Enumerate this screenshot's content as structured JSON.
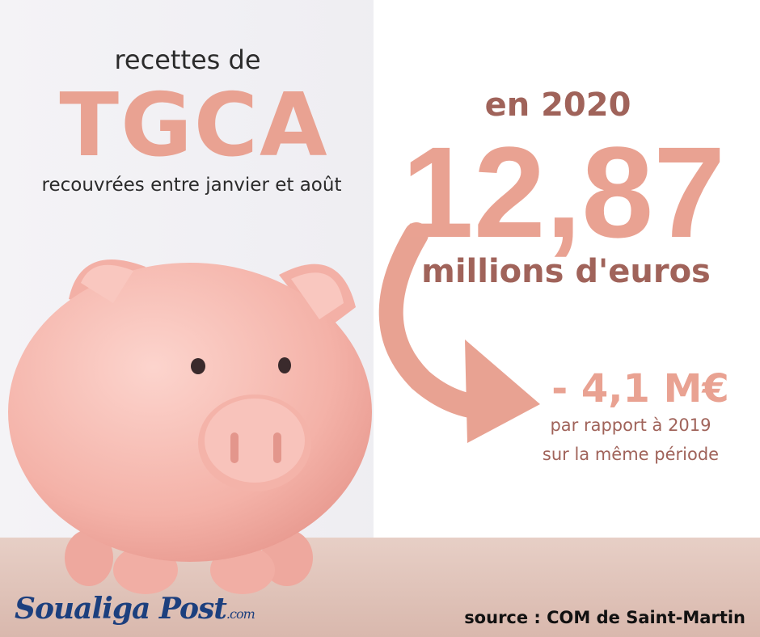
{
  "header": {
    "line1": "recettes de",
    "acronym": "TGCA",
    "line2": "recouvrées entre janvier et août"
  },
  "figure": {
    "year": "en 2020",
    "amount": "12,87",
    "unit": "millions d'euros"
  },
  "change": {
    "amount": "- 4,1 M€",
    "line1": "par rapport à 2019",
    "line2": "sur la même période"
  },
  "footer": {
    "logo": "Soualiga Post",
    "logo_suffix": ".com",
    "source": "source : COM de Saint-Martin"
  }
}
